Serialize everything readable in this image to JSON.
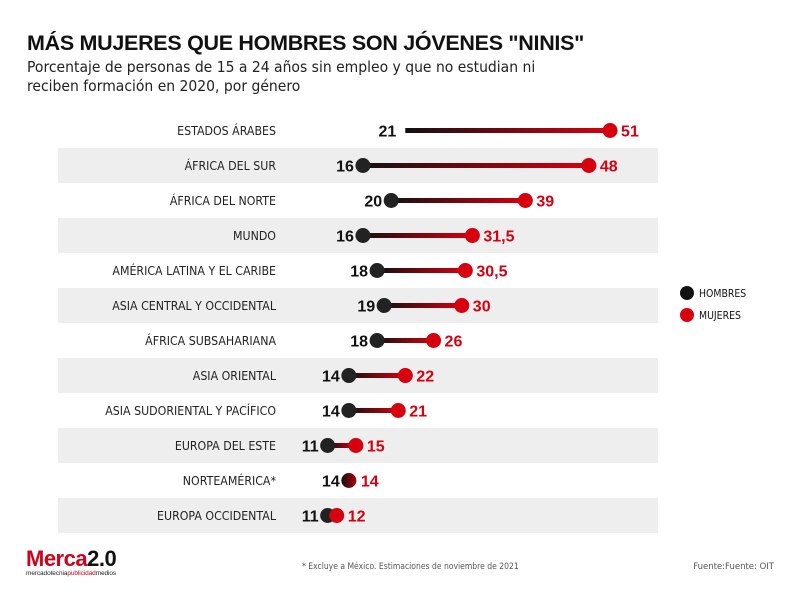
{
  "header": {
    "title": "MÁS MUJERES QUE HOMBRES SON JÓVENES \"NINIS\"",
    "subtitle": "Porcentaje de personas de 15 a 24 años sin empleo y que no estudian ni reciben formación en 2020, por género"
  },
  "chart_data": {
    "type": "dumbbell",
    "title": "MÁS MUJERES QUE HOMBRES SON JÓVENES \"NINIS\"",
    "subtitle": "Porcentaje de personas de 15 a 24 años sin empleo y que no estudian ni reciben formación en 2020, por género",
    "xlabel": "",
    "ylabel": "",
    "unit": "%",
    "grid": false,
    "legend_position": "right",
    "categories": [
      "ESTADOS ÁRABES",
      "ÁFRICA DEL SUR",
      "ÁFRICA DEL NORTE",
      "MUNDO",
      "AMÉRICA LATINA Y EL CARIBE",
      "ASIA CENTRAL Y OCCIDENTAL",
      "ÁFRICA SUBSAHARIANA",
      "ASIA ORIENTAL",
      "ASIA SUDORIENTAL Y PACÍFICO",
      "EUROPA DEL ESTE",
      "NORTEAMÉRICA*",
      "EUROPA OCCIDENTAL"
    ],
    "series": [
      {
        "name": "HOMBRES",
        "color": "#111111",
        "values": [
          21,
          16,
          20,
          16,
          18,
          19,
          18,
          14,
          14,
          11,
          14,
          11
        ],
        "labels": [
          "21",
          "16",
          "20",
          "16",
          "18",
          "19",
          "18",
          "14",
          "14",
          "11",
          "14",
          "11"
        ]
      },
      {
        "name": "MUJERES",
        "color": "#d7000f",
        "values": [
          51,
          48,
          39,
          31.5,
          30.5,
          30,
          26,
          22,
          21,
          15,
          14,
          12
        ],
        "labels": [
          "51",
          "48",
          "39",
          "31,5",
          "30,5",
          "30",
          "26",
          "22",
          "21",
          "15",
          "14",
          "12"
        ]
      }
    ]
  },
  "legend": {
    "items": [
      {
        "label": "HOMBRES",
        "color": "#111111"
      },
      {
        "label": "MUJERES",
        "color": "#d7000f"
      }
    ]
  },
  "footer": {
    "logo_main": "Merca",
    "logo_number": "2.0",
    "logo_sub_1": "mercadotecnia",
    "logo_sub_2": "publicidad",
    "logo_sub_3": "medios",
    "footnote": "* Excluye a México. Estimaciones de noviembre de 2021",
    "source": "Fuente:Fuente: OIT"
  }
}
